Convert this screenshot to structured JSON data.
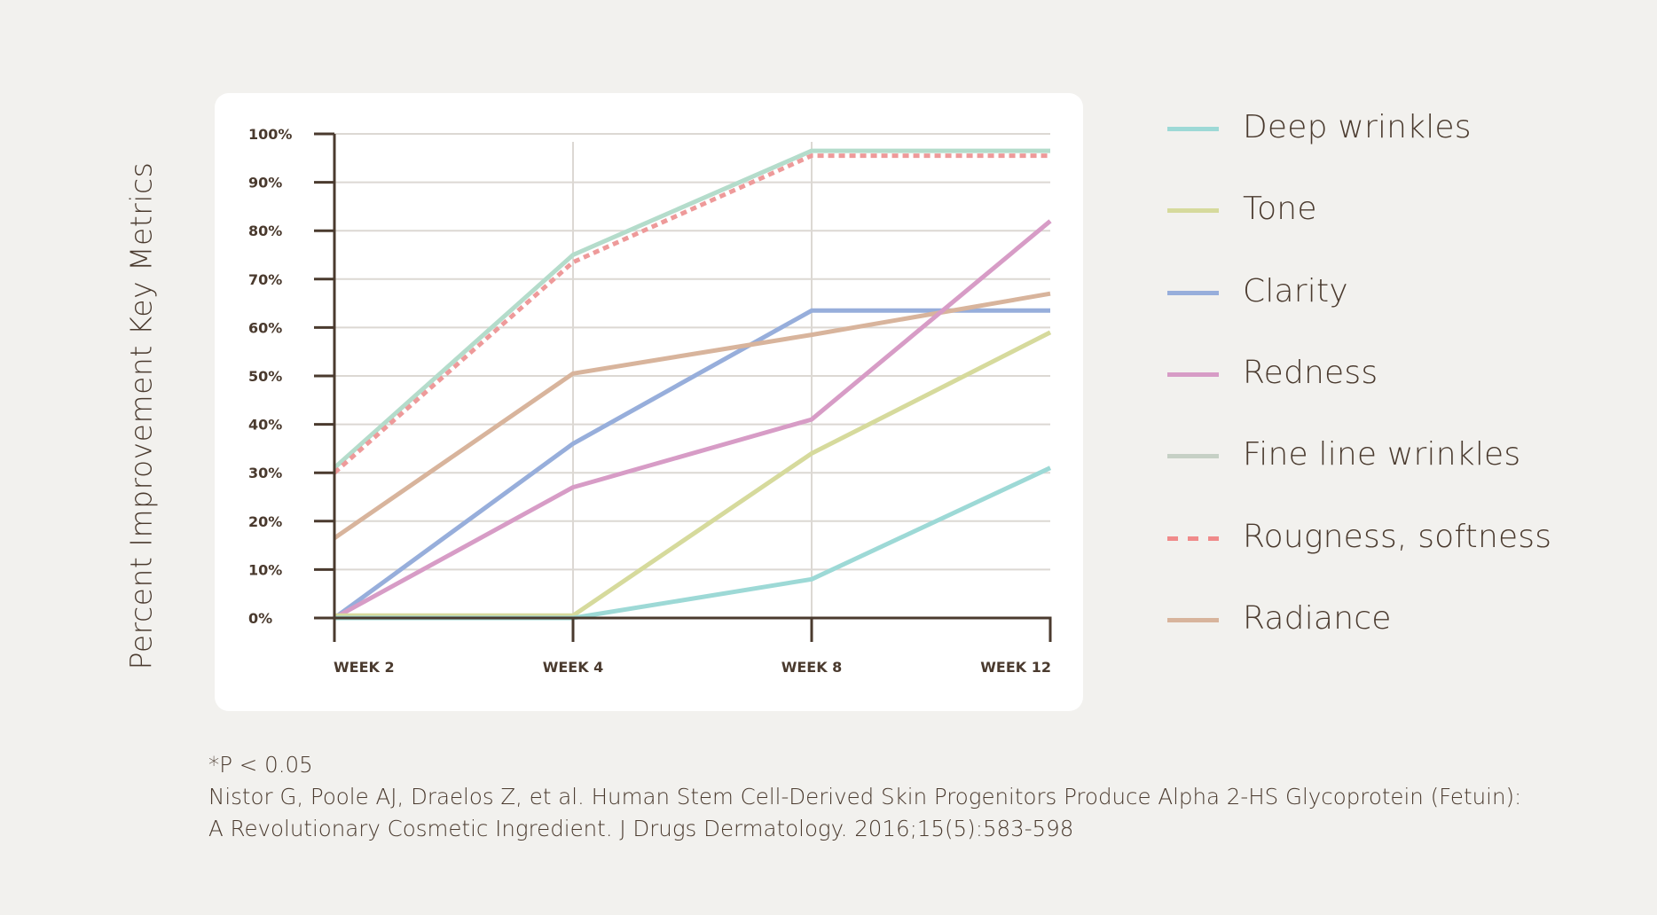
{
  "chart_data": {
    "type": "line",
    "title": "",
    "xlabel": "",
    "ylabel": "Percent Improvement Key Metrics",
    "categories": [
      "WEEK 2",
      "WEEK 4",
      "WEEK 8",
      "WEEK 12"
    ],
    "y_ticks": [
      "0%",
      "10%",
      "20%",
      "30%",
      "40%",
      "50%",
      "60%",
      "70%",
      "80%",
      "90%",
      "100%"
    ],
    "ylim": [
      0,
      100
    ],
    "grid": true,
    "legend_position": "right",
    "series": [
      {
        "name": "Deep wrinkles",
        "color": "#9dd9d6",
        "style": "solid",
        "values": [
          0,
          0,
          8,
          31
        ]
      },
      {
        "name": "Tone",
        "color": "#d6da9c",
        "style": "solid",
        "values": [
          0.5,
          0.5,
          34,
          59
        ]
      },
      {
        "name": "Clarity",
        "color": "#97aedb",
        "style": "solid",
        "values": [
          0,
          36,
          63.5,
          63.5
        ]
      },
      {
        "name": "Redness",
        "color": "#d79cc6",
        "style": "solid",
        "values": [
          0,
          27,
          41,
          82
        ]
      },
      {
        "name": "Fine line wrinkles",
        "color": "#b4dccb",
        "legend_color": "#c6d0c5",
        "style": "solid",
        "values": [
          31,
          75,
          96.5,
          96.5
        ]
      },
      {
        "name": "Rougness, softness",
        "color": "#ee9a9a",
        "legend_color": "#f08a8a",
        "style": "dashed",
        "values": [
          30,
          73.5,
          95.5,
          95.5
        ]
      },
      {
        "name": "Radiance",
        "color": "#d8b49c",
        "style": "solid",
        "values": [
          16.5,
          50.5,
          58.5,
          67
        ]
      }
    ]
  },
  "footnote": {
    "significance": "*P < 0.05",
    "citation_line1": "Nistor G, Poole AJ, Draelos Z, et al. Human Stem Cell-Derived Skin Progenitors Produce Alpha 2-HS Glycoprotein (Fetuin):",
    "citation_line2": "A Revolutionary Cosmetic Ingredient. J Drugs Dermatology. 2016;15(5):583-598"
  },
  "colors": {
    "background": "#f2f1ee",
    "card": "#ffffff",
    "axis": "#4a3a2e",
    "grid": "#dcd8d3",
    "text": "#4a3a2e"
  }
}
